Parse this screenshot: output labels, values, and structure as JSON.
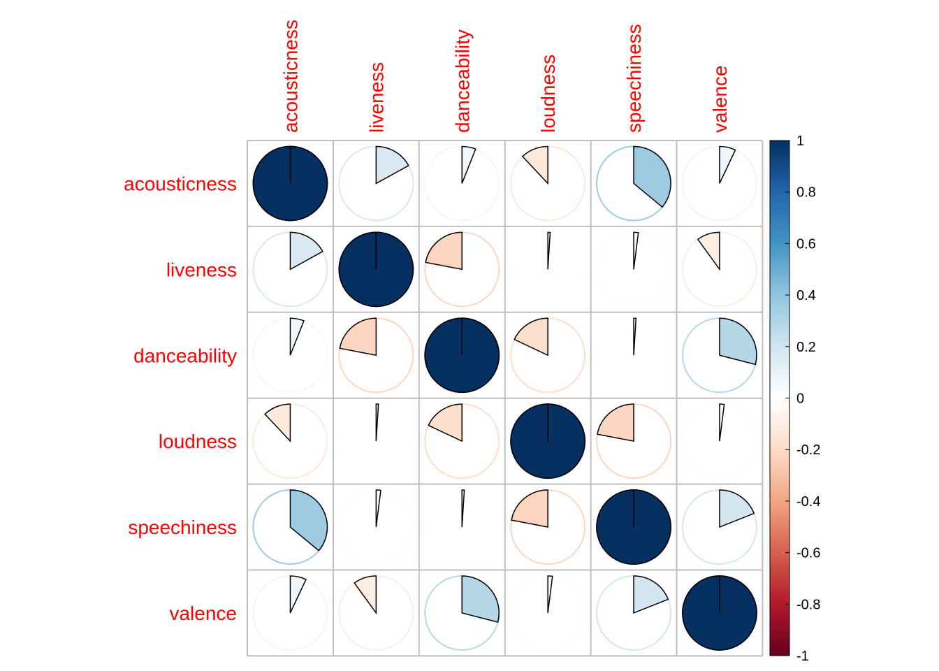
{
  "chart_data": {
    "type": "heatmap",
    "method": "pie",
    "variables": [
      "acousticness",
      "liveness",
      "danceability",
      "loudness",
      "speechiness",
      "valence"
    ],
    "matrix": [
      [
        1.0,
        0.17,
        0.06,
        -0.12,
        0.36,
        0.07
      ],
      [
        0.17,
        1.0,
        -0.22,
        0.01,
        0.02,
        -0.1
      ],
      [
        0.06,
        -0.22,
        1.0,
        -0.18,
        0.01,
        0.29
      ],
      [
        -0.12,
        0.01,
        -0.18,
        1.0,
        -0.22,
        0.02
      ],
      [
        0.36,
        0.02,
        0.01,
        -0.22,
        1.0,
        0.19
      ],
      [
        0.07,
        -0.1,
        0.29,
        0.02,
        0.19,
        1.0
      ]
    ],
    "colorbar": {
      "range": [
        -1,
        1
      ],
      "ticks": [
        "1",
        "0.8",
        "0.6",
        "0.4",
        "0.2",
        "0",
        "-0.2",
        "-0.4",
        "-0.6",
        "-0.8",
        "-1"
      ]
    },
    "label_color": "#FF0000",
    "palette": [
      "#67001F",
      "#B2182B",
      "#D6604D",
      "#F4A582",
      "#FDDBC7",
      "#FFFFFF",
      "#D1E5F0",
      "#92C5DE",
      "#4393C3",
      "#2166AC",
      "#053061"
    ],
    "grid": true,
    "grid_color": "#BEBEBE"
  }
}
